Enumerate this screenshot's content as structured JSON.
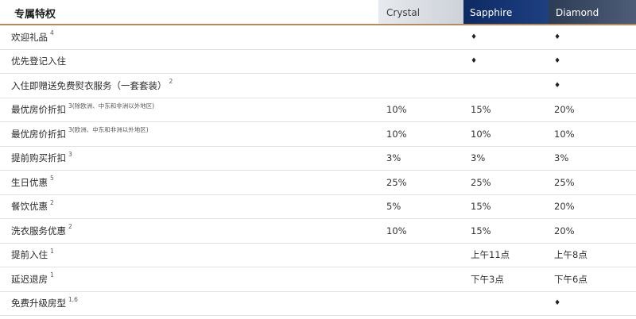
{
  "header": {
    "title": "专属特权",
    "tiers": [
      "Crystal",
      "Sapphire",
      "Diamond"
    ]
  },
  "rows": [
    {
      "label": "欢迎礼品",
      "sup": "4",
      "note": "",
      "crystal": "",
      "sapphire": "♦",
      "diamond": "♦"
    },
    {
      "label": "优先登记入住",
      "sup": "",
      "note": "",
      "crystal": "",
      "sapphire": "♦",
      "diamond": "♦"
    },
    {
      "label": "入住即赠送免费熨衣服务（一套套装）",
      "sup": "2",
      "note": "",
      "crystal": "",
      "sapphire": "",
      "diamond": "♦"
    },
    {
      "label": "最优房价折扣",
      "sup": "3",
      "note": "(除欧洲、中东和非洲以外地区)",
      "crystal": "10%",
      "sapphire": "15%",
      "diamond": "20%"
    },
    {
      "label": "最优房价折扣",
      "sup": "3",
      "note": "(欧洲、中东和非洲以外地区)",
      "crystal": "10%",
      "sapphire": "10%",
      "diamond": "10%"
    },
    {
      "label": "提前购买折扣",
      "sup": "3",
      "note": "",
      "crystal": "3%",
      "sapphire": "3%",
      "diamond": "3%"
    },
    {
      "label": "生日优惠",
      "sup": "5",
      "note": "",
      "crystal": "25%",
      "sapphire": "25%",
      "diamond": "25%"
    },
    {
      "label": "餐饮优惠",
      "sup": "2",
      "note": "",
      "crystal": "5%",
      "sapphire": "15%",
      "diamond": "20%"
    },
    {
      "label": "洗衣服务优惠",
      "sup": "2",
      "note": "",
      "crystal": "10%",
      "sapphire": "15%",
      "diamond": "20%"
    },
    {
      "label": "提前入住",
      "sup": "1",
      "note": "",
      "crystal": "",
      "sapphire": "上午11点",
      "diamond": "上午8点"
    },
    {
      "label": "延迟退房",
      "sup": "1",
      "note": "",
      "crystal": "",
      "sapphire": "下午3点",
      "diamond": "下午6点"
    },
    {
      "label": "免费升级房型",
      "sup": "1,6",
      "note": "",
      "crystal": "",
      "sapphire": "",
      "diamond": "♦"
    }
  ]
}
